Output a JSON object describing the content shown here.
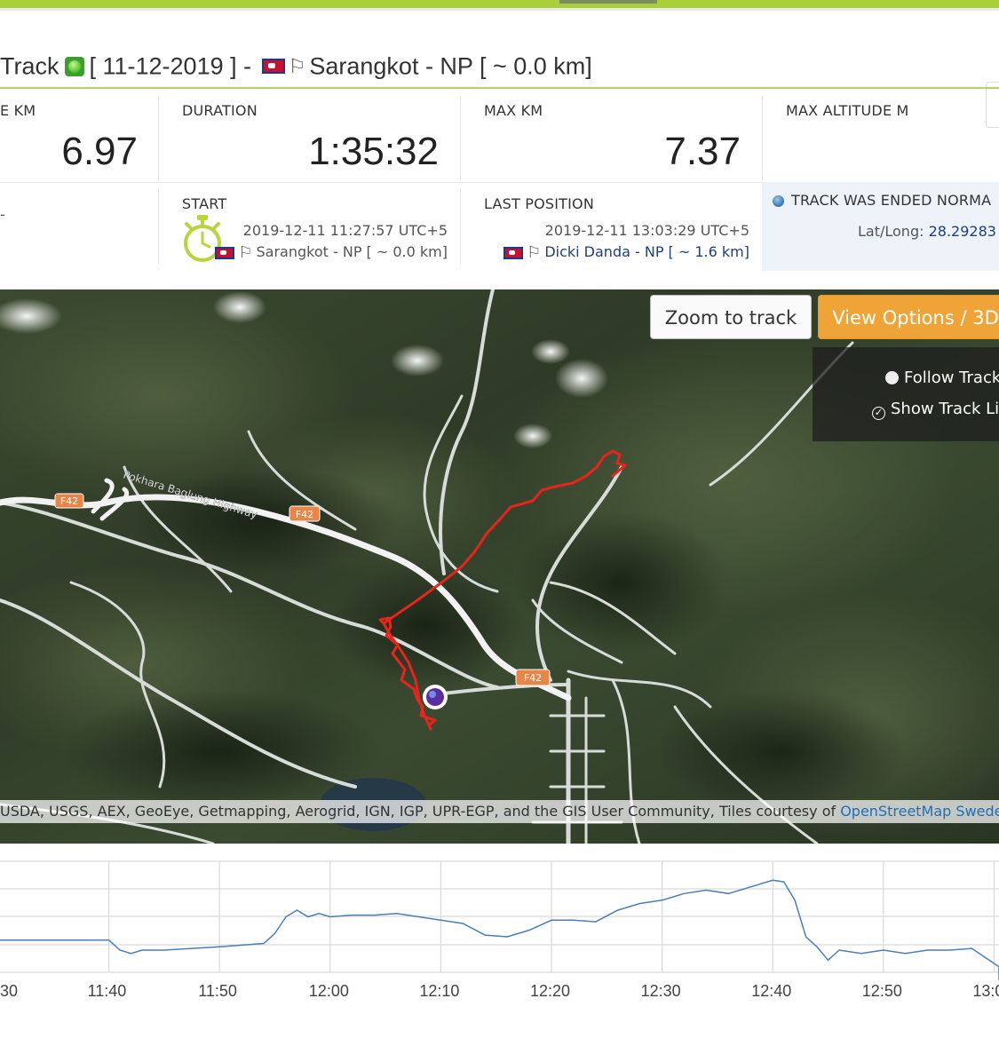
{
  "title": {
    "prefix": "Track",
    "date": "[ 11-12-2019 ] -",
    "location": "Sarangkot - NP [ ~ 0.0 km]"
  },
  "stats": {
    "distance": {
      "label": "E KM",
      "value": "6.97"
    },
    "duration": {
      "label": "DURATION",
      "value": "1:35:32"
    },
    "max_km": {
      "label": "MAX KM",
      "value": "7.37"
    },
    "max_altitude": {
      "label": "MAX ALTITUDE M",
      "value": ""
    },
    "left_dash": "-",
    "start": {
      "label": "START",
      "time": "2019-12-11 11:27:57 UTC+5",
      "location": "Sarangkot - NP [ ~ 0.0 km]"
    },
    "last_position": {
      "label": "LAST POSITION",
      "time": "2019-12-11 13:03:29 UTC+5",
      "location": "Dicki Danda - NP [ ~ 1.6 km]"
    },
    "status": {
      "text": "TRACK WAS ENDED NORMA",
      "latlong_label": "Lat/Long:",
      "latlong_value": "28.29283 ,"
    }
  },
  "map": {
    "zoom_button": "Zoom to track",
    "view_options_button": "View Options / 3D",
    "follow_track": "Follow Track",
    "show_track": "Show Track Li",
    "road_labels": [
      "Pokhara Baglung Highway",
      "F42",
      "F42",
      "F42"
    ],
    "attribution": "USDA, USGS, AEX, GeoEye, Getmapping, Aerogrid, IGN, IGP, UPR-EGP, and the GIS User Community, Tiles courtesy of ",
    "attribution_link": "OpenStreetMap Sweden",
    "track_color": "#e8231c"
  },
  "chart_data": {
    "type": "line",
    "title": "",
    "xlabel": "",
    "ylabel": "",
    "x_ticks": [
      "30",
      "11:40",
      "11:50",
      "12:00",
      "12:10",
      "12:20",
      "12:30",
      "12:40",
      "12:50",
      "13:0"
    ],
    "grid": true,
    "line_color": "#4a7fb5",
    "series": [
      {
        "x_minutes": [
          0,
          5,
          10,
          11,
          12,
          13,
          15,
          20,
          24,
          25,
          26,
          27,
          28,
          29,
          30,
          32,
          34,
          36,
          38,
          40,
          42,
          44,
          46,
          48,
          50,
          52,
          54,
          56,
          58,
          60,
          62,
          64,
          66,
          68,
          70,
          71,
          72,
          73,
          74,
          75,
          76,
          78,
          80,
          82,
          84,
          86,
          88,
          90,
          92,
          94,
          96,
          100
        ],
        "y_relative": [
          0.3,
          0.3,
          0.3,
          0.24,
          0.22,
          0.24,
          0.24,
          0.26,
          0.28,
          0.34,
          0.44,
          0.48,
          0.44,
          0.46,
          0.44,
          0.45,
          0.45,
          0.46,
          0.44,
          0.42,
          0.4,
          0.33,
          0.32,
          0.36,
          0.42,
          0.42,
          0.41,
          0.48,
          0.52,
          0.54,
          0.58,
          0.6,
          0.58,
          0.62,
          0.66,
          0.65,
          0.54,
          0.32,
          0.26,
          0.18,
          0.24,
          0.22,
          0.24,
          0.22,
          0.24,
          0.24,
          0.25,
          0.16,
          0.14,
          0.12,
          0.08,
          0.06
        ]
      }
    ]
  }
}
